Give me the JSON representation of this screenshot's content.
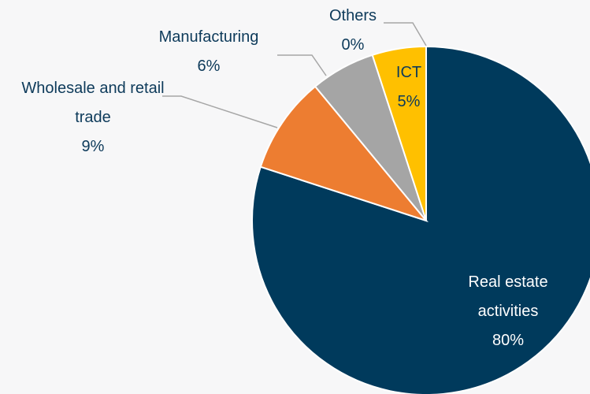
{
  "chart_data": {
    "type": "pie",
    "categories": [
      "Real estate activities",
      "Wholesale and retail trade",
      "Manufacturing",
      "ICT",
      "Others"
    ],
    "values": [
      80,
      9,
      6,
      5,
      0
    ],
    "value_labels": [
      "80%",
      "9%",
      "6%",
      "5%",
      "0%"
    ],
    "colors": [
      "#003a5c",
      "#ed7d31",
      "#a5a5a5",
      "#ffc000",
      "#7f7f7f"
    ]
  }
}
